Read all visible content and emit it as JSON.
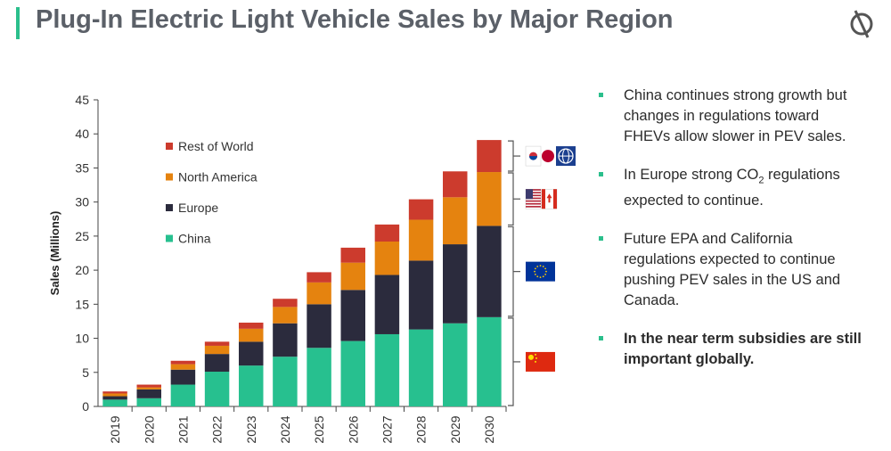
{
  "header": {
    "title": "Plug-In Electric Light Vehicle Sales by Major Region"
  },
  "colors": {
    "accent": "#2bbf8c",
    "china": "#27c08f",
    "europe": "#2b2b3d",
    "north_america": "#e5830f",
    "rest_of_world": "#cc3b2d"
  },
  "chart_data": {
    "type": "bar",
    "stacked": true,
    "ylabel": "Sales (Millions)",
    "ylim": [
      0,
      45
    ],
    "yticks": [
      0,
      5,
      10,
      15,
      20,
      25,
      30,
      35,
      40,
      45
    ],
    "categories": [
      "2019",
      "2020",
      "2021",
      "2022",
      "2023",
      "2024",
      "2025",
      "2026",
      "2027",
      "2028",
      "2029",
      "2030"
    ],
    "legend_position": "top-left",
    "series": [
      {
        "name": "China",
        "color": "#27c08f",
        "values": [
          1.0,
          1.2,
          3.2,
          5.1,
          6.0,
          7.3,
          8.6,
          9.6,
          10.6,
          11.3,
          12.2,
          13.1
        ]
      },
      {
        "name": "Europe",
        "color": "#2b2b3d",
        "values": [
          0.5,
          1.3,
          2.2,
          2.6,
          3.5,
          4.9,
          6.4,
          7.5,
          8.7,
          10.1,
          11.6,
          13.4
        ]
      },
      {
        "name": "North America",
        "color": "#e5830f",
        "values": [
          0.4,
          0.3,
          0.8,
          1.2,
          1.9,
          2.4,
          3.2,
          4.0,
          4.9,
          6.0,
          6.9,
          7.9
        ]
      },
      {
        "name": "Rest of World",
        "color": "#cc3b2d",
        "values": [
          0.3,
          0.4,
          0.5,
          0.6,
          0.9,
          1.2,
          1.5,
          2.2,
          2.5,
          3.0,
          3.8,
          4.7
        ]
      }
    ]
  },
  "flags": [
    {
      "group": "rest-of-world",
      "icons": [
        "south-korea-flag-icon",
        "japan-flag-icon",
        "globe-icon"
      ]
    },
    {
      "group": "north-america",
      "icons": [
        "usa-flag-icon",
        "canada-flag-icon"
      ]
    },
    {
      "group": "europe",
      "icons": [
        "eu-flag-icon"
      ]
    },
    {
      "group": "china",
      "icons": [
        "china-flag-icon"
      ]
    }
  ],
  "bullets": {
    "b1": "China continues strong growth but changes in regulations toward FHEVs allow slower in PEV sales.",
    "b2_pre": "In Europe strong CO",
    "b2_sub": "2",
    "b2_post": " regulations expected to continue.",
    "b3": "Future EPA and California regulations expected to continue pushing PEV sales in the US and Canada.",
    "b4": "In the near term subsidies are still important globally."
  }
}
